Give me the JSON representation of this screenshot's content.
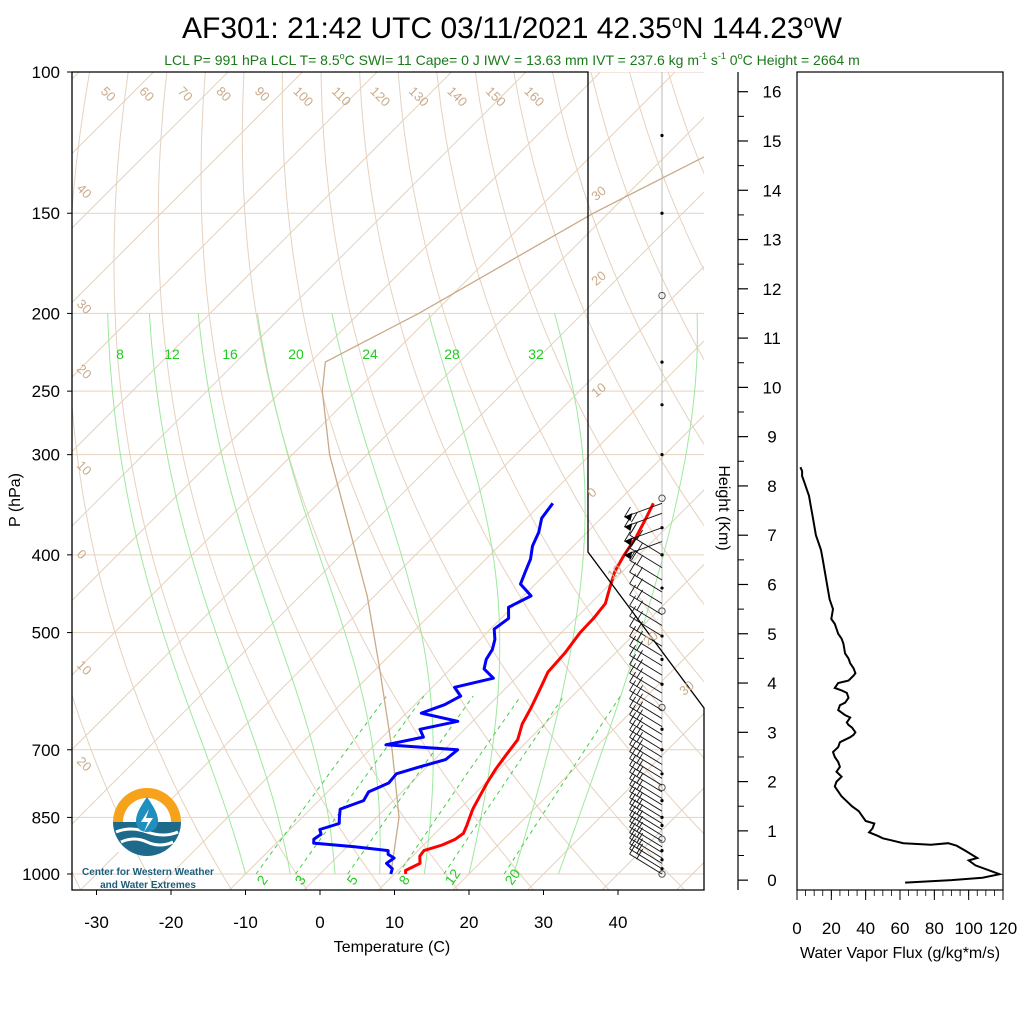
{
  "title_main": "AF301: 21:42 UTC 03/11/2021  42.35",
  "title_lat_unit": "o",
  "title_mid": "N 144.23",
  "title_lon_unit": "o",
  "title_end": "W",
  "subtitle": {
    "part1": "LCL P= 991 hPa  LCL T= 8.5",
    "deg1": "o",
    "part2": "C  SWI= 11  Cape= 0 J  IWV = 13.63 mm  IVT = 237.6 kg m",
    "sup1": "-1",
    "part3": " s",
    "sup2": "-1",
    "part4": "  0",
    "deg2": "o",
    "part5": "C Height = 2664 m"
  },
  "logo": {
    "line1": "Center for Western Weather",
    "line2": "and Water Extremes"
  },
  "chart_data": [
    {
      "type": "line",
      "name": "skew-t",
      "xlabel": "Temperature (C)",
      "ylabel": "P (hPa)",
      "xlim": [
        -34,
        51
      ],
      "ylim": [
        1020,
        100
      ],
      "y_scale": "log",
      "x_ticks": [
        "-30",
        "-20",
        "-10",
        "0",
        "10",
        "20",
        "30",
        "40"
      ],
      "x_tick_values": [
        -30,
        -20,
        -10,
        0,
        10,
        20,
        30,
        40
      ],
      "y_ticks": [
        "100",
        "150",
        "200",
        "250",
        "300",
        "400",
        "500",
        "700",
        "850",
        "1000"
      ],
      "y_tick_values": [
        100,
        150,
        200,
        250,
        300,
        400,
        500,
        700,
        850,
        1000
      ],
      "isotherm_labels": [
        "50",
        "60",
        "70",
        "80",
        "90",
        "100",
        "110",
        "120",
        "130",
        "140",
        "150",
        "160"
      ],
      "isotherm_label_values": [
        50,
        60,
        70,
        80,
        90,
        100,
        110,
        120,
        130,
        140,
        150,
        160
      ],
      "left_tan_labels": [
        "40",
        "30",
        "20",
        "10",
        "0",
        "10",
        "20"
      ],
      "left_tan_pressures": [
        140,
        195,
        235,
        310,
        400,
        550,
        725
      ],
      "right_tan_labels": [
        "30",
        "20",
        "10",
        "0",
        "10",
        "20",
        "30"
      ],
      "right_tan_pressures": [
        145,
        185,
        255,
        340,
        430,
        520,
        600
      ],
      "mixing_ratio_top_labels": [
        "8",
        "12",
        "16",
        "20",
        "24",
        "28",
        "32"
      ],
      "mixing_ratio_bottom_labels": [
        "2",
        "3",
        "5",
        "8",
        "12",
        "20"
      ],
      "temperature": {
        "color": "#ff0000",
        "p": [
          1000,
          990,
          970,
          950,
          935,
          920,
          905,
          890,
          870,
          850,
          830,
          800,
          770,
          740,
          710,
          680,
          650,
          620,
          590,
          560,
          530,
          500,
          480,
          460,
          440,
          420,
          400,
          380,
          360,
          345
        ],
        "t": [
          11.5,
          11.0,
          12.0,
          11.0,
          10.8,
          12.5,
          13.5,
          13.8,
          13.2,
          12.5,
          11.8,
          11.0,
          10.2,
          9.5,
          9.0,
          8.5,
          7.0,
          6.0,
          4.8,
          3.5,
          3.2,
          2.5,
          2.4,
          2.0,
          0.5,
          -1.0,
          -2.0,
          -2.8,
          -4.0,
          -5.0
        ]
      },
      "dewpoint": {
        "color": "#0000ff",
        "p": [
          1000,
          985,
          970,
          955,
          945,
          935,
          925,
          915,
          905,
          892,
          880,
          865,
          850,
          830,
          810,
          790,
          770,
          750,
          735,
          720,
          700,
          690,
          675,
          660,
          645,
          630,
          615,
          600,
          585,
          570,
          555,
          540,
          525,
          510,
          495,
          480,
          465,
          450,
          435,
          420,
          405,
          390,
          375,
          360,
          345
        ],
        "t": [
          9.5,
          9.0,
          7.5,
          7.8,
          6.5,
          6.0,
          1.0,
          -5.0,
          -5.5,
          -5.2,
          -6.0,
          -4.2,
          -5.0,
          -6.0,
          -4.0,
          -4.5,
          -3.0,
          -3.2,
          -1.0,
          1.5,
          1.8,
          -8.5,
          -4.5,
          -6.0,
          -2.0,
          -8.0,
          -6.0,
          -5.0,
          -7.0,
          -3.0,
          -5.5,
          -6.5,
          -7.0,
          -8.0,
          -9.5,
          -9.0,
          -10.5,
          -9.0,
          -12.0,
          -13.0,
          -14.0,
          -15.5,
          -16.5,
          -18.0,
          -18.5
        ]
      },
      "parcel": {
        "color": "#c9aa88",
        "p": [
          1000,
          850,
          700,
          550,
          450,
          380,
          300,
          250,
          230,
          200,
          150,
          110
        ],
        "t": [
          9.5,
          3.0,
          -7.0,
          -20.0,
          -31.0,
          -41.0,
          -55.0,
          -64.5,
          -68.0,
          -62.0,
          -52.0,
          -38.0
        ]
      },
      "wind_barb_pressures": [
        1000,
        985,
        970,
        955,
        940,
        925,
        910,
        895,
        880,
        865,
        850,
        835,
        820,
        805,
        790,
        775,
        760,
        745,
        730,
        715,
        700,
        685,
        670,
        655,
        640,
        625,
        610,
        595,
        580,
        565,
        550,
        535,
        520,
        505,
        490,
        475,
        460,
        445,
        430,
        415,
        400,
        385,
        370,
        355,
        345
      ],
      "wind_dots": [
        1000,
        985,
        960,
        935,
        905,
        870,
        850,
        810,
        780,
        750,
        700,
        660,
        620,
        580,
        540,
        505,
        470,
        440,
        400,
        370,
        340,
        300,
        260,
        230,
        190,
        150,
        120
      ]
    },
    {
      "type": "line",
      "name": "water-vapor-flux",
      "xlabel": "Water Vapor Flux (g/kg*m/s)",
      "ylabel": "Height (Km)",
      "xlim": [
        0,
        120
      ],
      "ylim": [
        -0.2,
        16.4
      ],
      "x_ticks": [
        "0",
        "20",
        "40",
        "60",
        "80",
        "100",
        "120"
      ],
      "x_tick_values": [
        0,
        20,
        40,
        60,
        80,
        100,
        120
      ],
      "y_ticks": [
        "0",
        "1",
        "2",
        "3",
        "4",
        "5",
        "6",
        "7",
        "8",
        "9",
        "10",
        "11",
        "12",
        "13",
        "14",
        "15",
        "16"
      ],
      "y_tick_values": [
        0,
        1,
        2,
        3,
        4,
        5,
        6,
        7,
        8,
        9,
        10,
        11,
        12,
        13,
        14,
        15,
        16
      ],
      "series": {
        "color": "#000000",
        "x": [
          63,
          90,
          108,
          118,
          104,
          100,
          105,
          98,
          93,
          88,
          78,
          62,
          50,
          47,
          42,
          44,
          45,
          40,
          38,
          36,
          32,
          29,
          26,
          24,
          22,
          23,
          26,
          23,
          25,
          24,
          22,
          21,
          24,
          25,
          28,
          31,
          33,
          34,
          32,
          30,
          29,
          31,
          28,
          26,
          24,
          25,
          28,
          30,
          29,
          26,
          22,
          24,
          30,
          33,
          34,
          33,
          31,
          30,
          28,
          27,
          26,
          24,
          23,
          22,
          20,
          21,
          19,
          18,
          17,
          16,
          15,
          14,
          12,
          11,
          10,
          9,
          8,
          7,
          6,
          5,
          4,
          3,
          3,
          2
        ],
        "h": [
          -0.05,
          0.0,
          0.05,
          0.12,
          0.3,
          0.4,
          0.45,
          0.6,
          0.7,
          0.75,
          0.72,
          0.75,
          0.85,
          0.9,
          0.97,
          1.05,
          1.15,
          1.2,
          1.3,
          1.4,
          1.5,
          1.6,
          1.7,
          1.8,
          1.9,
          2.0,
          2.1,
          2.2,
          2.3,
          2.4,
          2.5,
          2.6,
          2.7,
          2.8,
          2.85,
          2.9,
          2.95,
          3.0,
          3.1,
          3.15,
          3.2,
          3.3,
          3.35,
          3.4,
          3.45,
          3.55,
          3.6,
          3.7,
          3.8,
          3.85,
          3.9,
          4.0,
          4.05,
          4.15,
          4.2,
          4.3,
          4.4,
          4.5,
          4.6,
          4.8,
          4.9,
          5.0,
          5.1,
          5.2,
          5.3,
          5.5,
          5.7,
          5.9,
          6.1,
          6.3,
          6.5,
          6.7,
          6.9,
          7.0,
          7.2,
          7.4,
          7.6,
          7.8,
          7.9,
          8.0,
          8.1,
          8.2,
          8.3,
          8.38
        ]
      }
    }
  ]
}
